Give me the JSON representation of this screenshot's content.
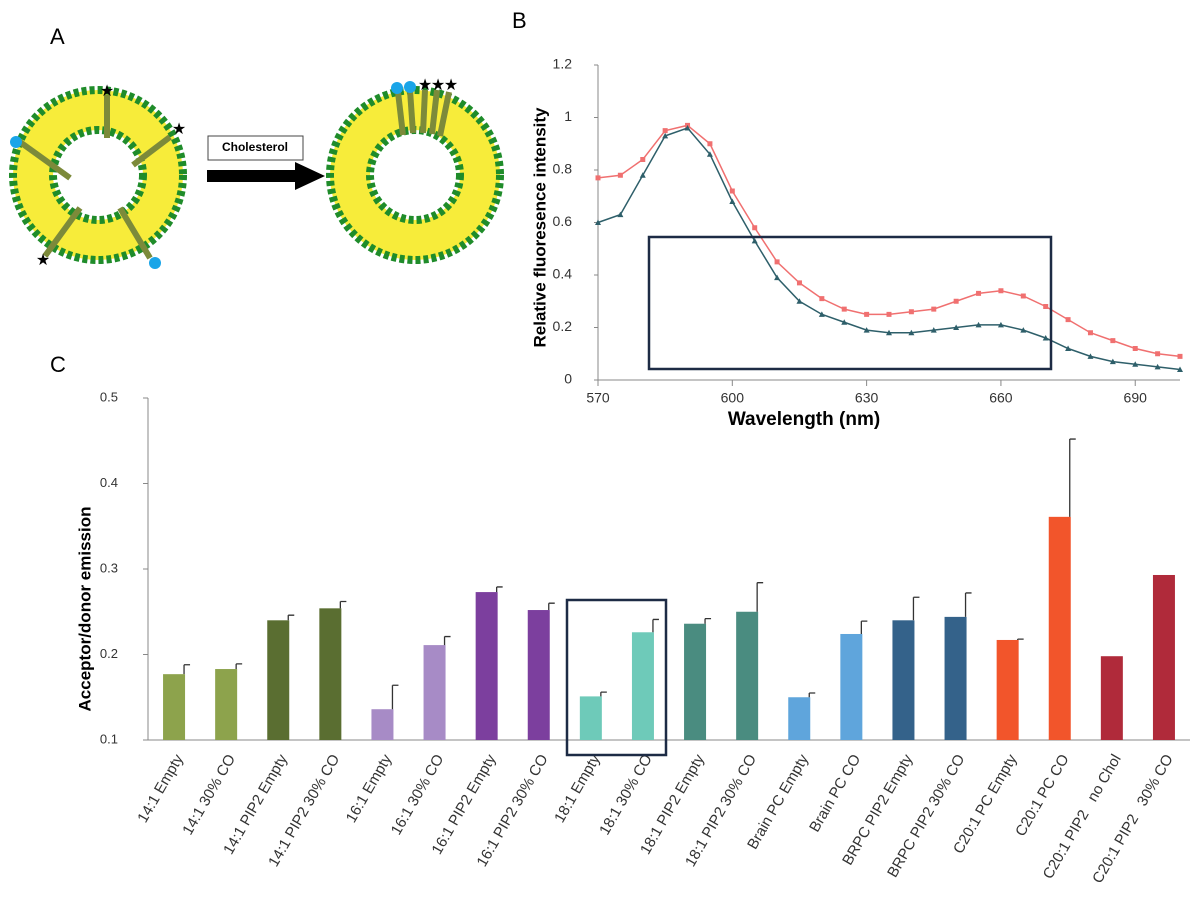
{
  "panel_labels": [
    "A",
    "B",
    "C"
  ],
  "diagram": {
    "arrow_label": "Cholesterol"
  },
  "chart_data": [
    {
      "type": "line",
      "ylabel": "Relative fluoresence intensity",
      "xlabel": "Wavelength (nm)",
      "x": [
        570,
        575,
        580,
        585,
        590,
        595,
        600,
        605,
        610,
        615,
        620,
        625,
        630,
        635,
        640,
        645,
        650,
        655,
        660,
        665,
        670,
        675,
        680,
        685,
        690,
        695,
        700
      ],
      "series": [
        {
          "color": "#f07070",
          "marker": "square",
          "values": [
            0.77,
            0.78,
            0.84,
            0.95,
            0.97,
            0.9,
            0.72,
            0.58,
            0.45,
            0.37,
            0.31,
            0.27,
            0.25,
            0.25,
            0.26,
            0.27,
            0.3,
            0.33,
            0.34,
            0.32,
            0.28,
            0.23,
            0.18,
            0.15,
            0.12,
            0.1,
            0.09
          ]
        },
        {
          "color": "#2e5f6a",
          "marker": "triangle",
          "values": [
            0.6,
            0.63,
            0.78,
            0.93,
            0.96,
            0.86,
            0.68,
            0.53,
            0.39,
            0.3,
            0.25,
            0.22,
            0.19,
            0.18,
            0.18,
            0.19,
            0.2,
            0.21,
            0.21,
            0.19,
            0.16,
            0.12,
            0.09,
            0.07,
            0.06,
            0.05,
            0.04
          ]
        }
      ],
      "xlim": [
        570,
        700
      ],
      "xticks": [
        570,
        600,
        630,
        660,
        690
      ],
      "ylim": [
        0,
        1.2
      ],
      "yticks": [
        0,
        0.2,
        0.4,
        0.6,
        0.8,
        1,
        1.2
      ],
      "grid": false
    },
    {
      "type": "bar",
      "ylabel": "Acceptor/donor emission",
      "categories": [
        "14:1 Empty",
        "14:1 30% CO",
        "14:1 PIP2 Empty",
        "14:1 PIP2 30% CO",
        "16:1 Empty",
        "16:1 30% CO",
        "16:1 PIP2 Empty",
        "16:1 PIP2 30% CO",
        "18:1 Empty",
        "18:1 30% CO",
        "18:1 PIP2 Empty",
        "18:1 PIP2 30% CO",
        "Brain PC Empty",
        "Brain PC CO",
        "BRPC PIP2 Empty",
        "BRPC PIP2 30% CO",
        "C20:1 PC Empty",
        "C20:1 PC CO",
        "C20:1 PIP2   no Chol",
        "C20:1 PIP2   30% CO"
      ],
      "values": [
        0.177,
        0.183,
        0.24,
        0.254,
        0.136,
        0.211,
        0.273,
        0.252,
        0.151,
        0.226,
        0.236,
        0.25,
        0.15,
        0.224,
        0.24,
        0.244,
        0.217,
        0.361,
        0.198,
        0.293
      ],
      "errors": [
        0.011,
        0.006,
        0.006,
        0.008,
        0.028,
        0.01,
        0.006,
        0.008,
        0.005,
        0.015,
        0.006,
        0.034,
        0.005,
        0.015,
        0.027,
        0.028,
        0.001,
        0.091,
        null,
        null
      ],
      "colors": [
        "#8da34c",
        "#8da34c",
        "#5a6e31",
        "#5a6e31",
        "#a78bc6",
        "#a78bc6",
        "#7c3f9e",
        "#7c3f9e",
        "#6ecab9",
        "#6ecab9",
        "#4a8c80",
        "#4a8c80",
        "#5fa5dc",
        "#5fa5dc",
        "#34628a",
        "#34628a",
        "#f2552b",
        "#f2552b",
        "#b02a3a",
        "#b02a3a"
      ],
      "ylim": [
        0.1,
        0.5
      ],
      "yticks": [
        0.1,
        0.2,
        0.3,
        0.4,
        0.5
      ],
      "grid": false
    }
  ]
}
